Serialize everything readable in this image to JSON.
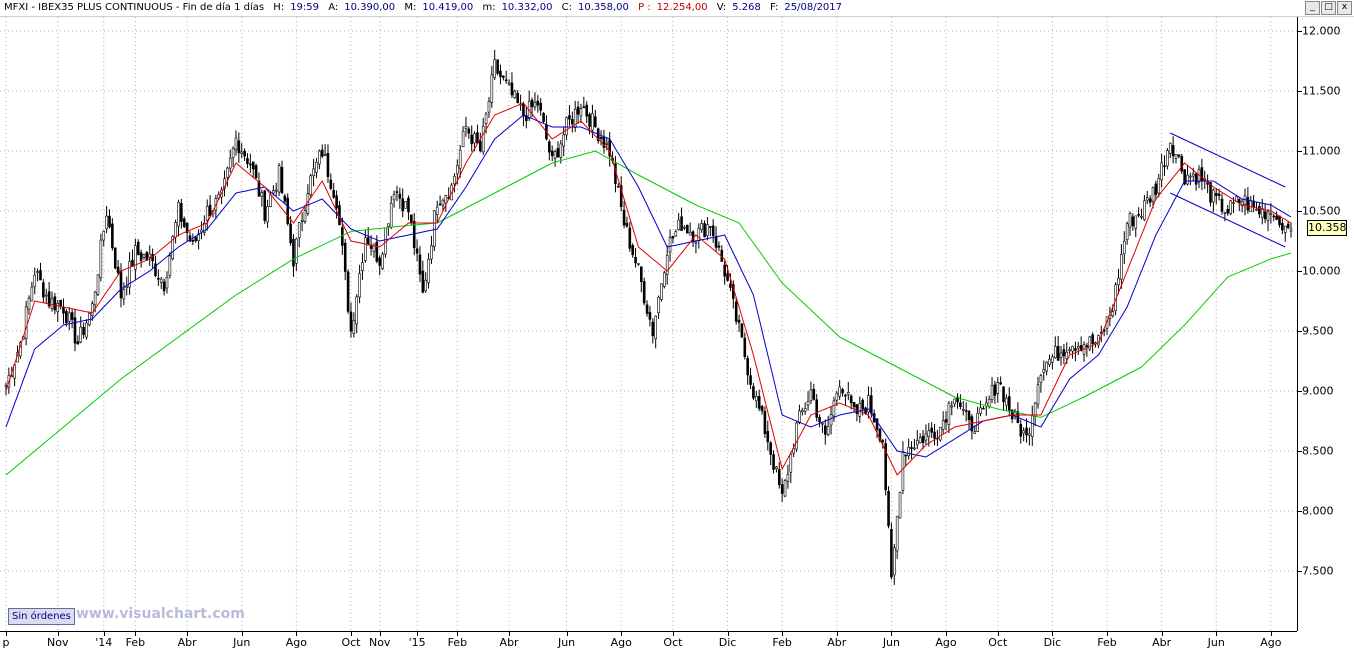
{
  "header": {
    "title": "MFXI - IBEX35 PLUS CONTINUOUS - Fin de día 1 días",
    "h_label": "H:",
    "h_value": "19:59",
    "a_label": "A:",
    "a_value": "10.390,00",
    "m_label": "M:",
    "m_value": "10.419,00",
    "low_label": "m:",
    "low_value": "10.332,00",
    "c_label": "C:",
    "c_value": "10.358,00",
    "p_label": "P :",
    "p_value": "12.254,00",
    "v_label": "V:",
    "v_value": "5.268",
    "f_label": "F:",
    "f_value": "25/08/2017"
  },
  "window_buttons": {
    "minimize": "_",
    "restore": "□",
    "close": "x"
  },
  "orders_button": "Sin órdenes",
  "watermark": "www.visualchart.com",
  "last_price_label": "10.358",
  "colors": {
    "price": "#000000",
    "ma_fast": "#e00000",
    "ma_mid": "#0000cc",
    "ma_slow": "#00cc00",
    "channel": "#0000cc",
    "last_price_bg": "#ffffc0"
  },
  "chart_data": {
    "type": "line",
    "title": "MFXI - IBEX35 PLUS CONTINUOUS",
    "xlabel": "",
    "ylabel": "",
    "ylim": [
      7000,
      12100
    ],
    "yticks": [
      "12.000",
      "11.500",
      "11.000",
      "10.500",
      "10.000",
      "9.500",
      "9.000",
      "8.500",
      "8.000",
      "7.500"
    ],
    "ytick_values": [
      12000,
      11500,
      11000,
      10500,
      10000,
      9500,
      9000,
      8500,
      8000,
      7500
    ],
    "xticks": [
      "p",
      "Nov",
      "'14",
      "Feb",
      "Abr",
      "Jun",
      "Ago",
      "Oct",
      "Nov",
      "'15",
      "Feb",
      "Abr",
      "Jun",
      "Ago",
      "Oct",
      "Dic",
      "Feb",
      "Abr",
      "Jun",
      "Ago",
      "Oct",
      "Dic",
      "Feb",
      "Abr",
      "Jun",
      "Ago"
    ],
    "xtick_index": [
      0,
      18,
      34,
      45,
      63,
      82,
      101,
      120,
      130,
      143,
      157,
      175,
      195,
      214,
      232,
      251,
      270,
      289,
      308,
      327,
      345,
      364,
      383,
      402,
      421,
      440
    ],
    "grid": true,
    "n_bars": 448,
    "price_anchors": [
      [
        0,
        9050
      ],
      [
        5,
        9400
      ],
      [
        10,
        10000
      ],
      [
        15,
        9750
      ],
      [
        20,
        9700
      ],
      [
        25,
        9400
      ],
      [
        30,
        9700
      ],
      [
        35,
        10500
      ],
      [
        40,
        9800
      ],
      [
        45,
        10150
      ],
      [
        50,
        10100
      ],
      [
        55,
        9900
      ],
      [
        60,
        10500
      ],
      [
        65,
        10200
      ],
      [
        70,
        10500
      ],
      [
        75,
        10600
      ],
      [
        80,
        11100
      ],
      [
        85,
        10900
      ],
      [
        90,
        10500
      ],
      [
        95,
        10800
      ],
      [
        100,
        10100
      ],
      [
        105,
        10700
      ],
      [
        110,
        11000
      ],
      [
        115,
        10600
      ],
      [
        120,
        9500
      ],
      [
        125,
        10300
      ],
      [
        130,
        10100
      ],
      [
        135,
        10700
      ],
      [
        140,
        10500
      ],
      [
        145,
        9800
      ],
      [
        150,
        10600
      ],
      [
        155,
        10700
      ],
      [
        160,
        11200
      ],
      [
        165,
        11000
      ],
      [
        170,
        11700
      ],
      [
        175,
        11500
      ],
      [
        180,
        11300
      ],
      [
        185,
        11400
      ],
      [
        190,
        10900
      ],
      [
        195,
        11200
      ],
      [
        200,
        11400
      ],
      [
        205,
        11200
      ],
      [
        210,
        11000
      ],
      [
        215,
        10400
      ],
      [
        220,
        10000
      ],
      [
        225,
        9500
      ],
      [
        230,
        10200
      ],
      [
        235,
        10400
      ],
      [
        240,
        10300
      ],
      [
        245,
        10400
      ],
      [
        250,
        10000
      ],
      [
        255,
        9500
      ],
      [
        260,
        9000
      ],
      [
        265,
        8600
      ],
      [
        270,
        8100
      ],
      [
        275,
        8700
      ],
      [
        280,
        9000
      ],
      [
        285,
        8600
      ],
      [
        290,
        9100
      ],
      [
        295,
        8800
      ],
      [
        300,
        8900
      ],
      [
        305,
        8600
      ],
      [
        308,
        7400
      ],
      [
        312,
        8500
      ],
      [
        318,
        8600
      ],
      [
        325,
        8700
      ],
      [
        330,
        9000
      ],
      [
        335,
        8700
      ],
      [
        340,
        8800
      ],
      [
        345,
        9100
      ],
      [
        350,
        8800
      ],
      [
        355,
        8600
      ],
      [
        360,
        9200
      ],
      [
        365,
        9300
      ],
      [
        370,
        9400
      ],
      [
        375,
        9400
      ],
      [
        380,
        9400
      ],
      [
        385,
        9700
      ],
      [
        390,
        10400
      ],
      [
        395,
        10500
      ],
      [
        400,
        10700
      ],
      [
        405,
        11100
      ],
      [
        410,
        10800
      ],
      [
        415,
        10800
      ],
      [
        420,
        10600
      ],
      [
        425,
        10500
      ],
      [
        430,
        10600
      ],
      [
        435,
        10500
      ],
      [
        440,
        10500
      ],
      [
        444,
        10358
      ],
      [
        447,
        10358
      ]
    ],
    "ma_fast_anchors": [
      [
        0,
        9000
      ],
      [
        10,
        9750
      ],
      [
        20,
        9700
      ],
      [
        30,
        9650
      ],
      [
        40,
        10000
      ],
      [
        50,
        10100
      ],
      [
        60,
        10300
      ],
      [
        70,
        10400
      ],
      [
        80,
        10900
      ],
      [
        90,
        10700
      ],
      [
        100,
        10400
      ],
      [
        110,
        10750
      ],
      [
        120,
        10250
      ],
      [
        130,
        10200
      ],
      [
        140,
        10400
      ],
      [
        150,
        10400
      ],
      [
        160,
        10900
      ],
      [
        170,
        11300
      ],
      [
        180,
        11400
      ],
      [
        190,
        11100
      ],
      [
        200,
        11250
      ],
      [
        210,
        11000
      ],
      [
        220,
        10200
      ],
      [
        230,
        10000
      ],
      [
        240,
        10300
      ],
      [
        250,
        10100
      ],
      [
        260,
        9300
      ],
      [
        270,
        8350
      ],
      [
        280,
        8800
      ],
      [
        290,
        8900
      ],
      [
        300,
        8800
      ],
      [
        310,
        8300
      ],
      [
        320,
        8550
      ],
      [
        330,
        8700
      ],
      [
        340,
        8750
      ],
      [
        350,
        8800
      ],
      [
        360,
        8800
      ],
      [
        370,
        9300
      ],
      [
        380,
        9400
      ],
      [
        390,
        10000
      ],
      [
        400,
        10600
      ],
      [
        410,
        10900
      ],
      [
        420,
        10700
      ],
      [
        430,
        10550
      ],
      [
        440,
        10500
      ],
      [
        447,
        10400
      ]
    ],
    "ma_mid_anchors": [
      [
        0,
        8700
      ],
      [
        10,
        9350
      ],
      [
        20,
        9550
      ],
      [
        30,
        9600
      ],
      [
        40,
        9850
      ],
      [
        50,
        10000
      ],
      [
        60,
        10200
      ],
      [
        70,
        10350
      ],
      [
        80,
        10650
      ],
      [
        90,
        10700
      ],
      [
        100,
        10500
      ],
      [
        110,
        10600
      ],
      [
        120,
        10350
      ],
      [
        130,
        10250
      ],
      [
        140,
        10300
      ],
      [
        150,
        10350
      ],
      [
        160,
        10700
      ],
      [
        170,
        11100
      ],
      [
        180,
        11300
      ],
      [
        190,
        11200
      ],
      [
        200,
        11200
      ],
      [
        210,
        11100
      ],
      [
        220,
        10700
      ],
      [
        230,
        10200
      ],
      [
        240,
        10250
      ],
      [
        250,
        10300
      ],
      [
        260,
        9800
      ],
      [
        270,
        8800
      ],
      [
        280,
        8700
      ],
      [
        290,
        8800
      ],
      [
        300,
        8850
      ],
      [
        310,
        8500
      ],
      [
        320,
        8450
      ],
      [
        330,
        8600
      ],
      [
        340,
        8750
      ],
      [
        350,
        8800
      ],
      [
        360,
        8700
      ],
      [
        370,
        9100
      ],
      [
        380,
        9300
      ],
      [
        390,
        9700
      ],
      [
        400,
        10300
      ],
      [
        410,
        10750
      ],
      [
        420,
        10750
      ],
      [
        430,
        10600
      ],
      [
        440,
        10550
      ],
      [
        447,
        10450
      ]
    ],
    "ma_slow_anchors": [
      [
        0,
        8300
      ],
      [
        20,
        8700
      ],
      [
        40,
        9100
      ],
      [
        60,
        9450
      ],
      [
        80,
        9800
      ],
      [
        100,
        10100
      ],
      [
        120,
        10330
      ],
      [
        140,
        10380
      ],
      [
        150,
        10400
      ],
      [
        170,
        10650
      ],
      [
        190,
        10900
      ],
      [
        205,
        11000
      ],
      [
        220,
        10800
      ],
      [
        240,
        10550
      ],
      [
        255,
        10400
      ],
      [
        270,
        9900
      ],
      [
        290,
        9450
      ],
      [
        310,
        9200
      ],
      [
        330,
        8950
      ],
      [
        345,
        8850
      ],
      [
        360,
        8780
      ],
      [
        375,
        8950
      ],
      [
        395,
        9200
      ],
      [
        410,
        9550
      ],
      [
        425,
        9950
      ],
      [
        440,
        10100
      ],
      [
        447,
        10150
      ]
    ],
    "channel_upper": [
      [
        405,
        11150
      ],
      [
        445,
        10700
      ]
    ],
    "channel_lower": [
      [
        405,
        10650
      ],
      [
        445,
        10200
      ]
    ]
  }
}
